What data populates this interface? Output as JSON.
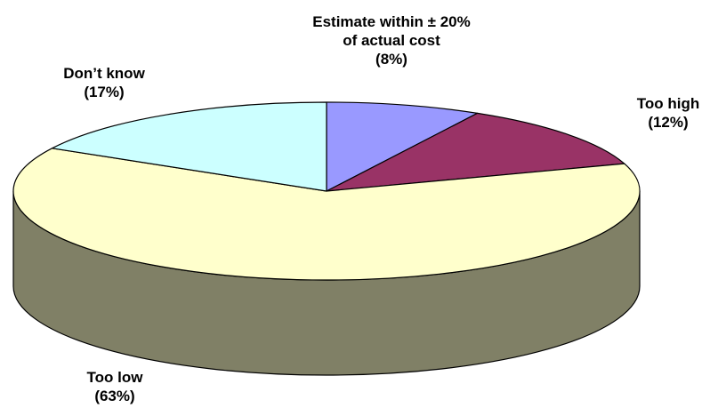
{
  "chart_data": {
    "type": "pie",
    "style": "3d",
    "title": "",
    "slices": [
      {
        "name": "Estimate within ± 20%",
        "name_line2": "of actual cost",
        "percent_label": "(8%)",
        "value": 8,
        "color": "#9999FF"
      },
      {
        "name": "Too high",
        "name_line2": "",
        "percent_label": "(12%)",
        "value": 12,
        "color": "#993366"
      },
      {
        "name": "Too low",
        "name_line2": "",
        "percent_label": "(63%)",
        "value": 63,
        "color": "#FFFFCC"
      },
      {
        "name": "Don’t know",
        "name_line2": "",
        "percent_label": "(17%)",
        "value": 17,
        "color": "#CCFFFF"
      }
    ],
    "side_color": "#808066",
    "outline_color": "#000000",
    "legend": "none"
  }
}
